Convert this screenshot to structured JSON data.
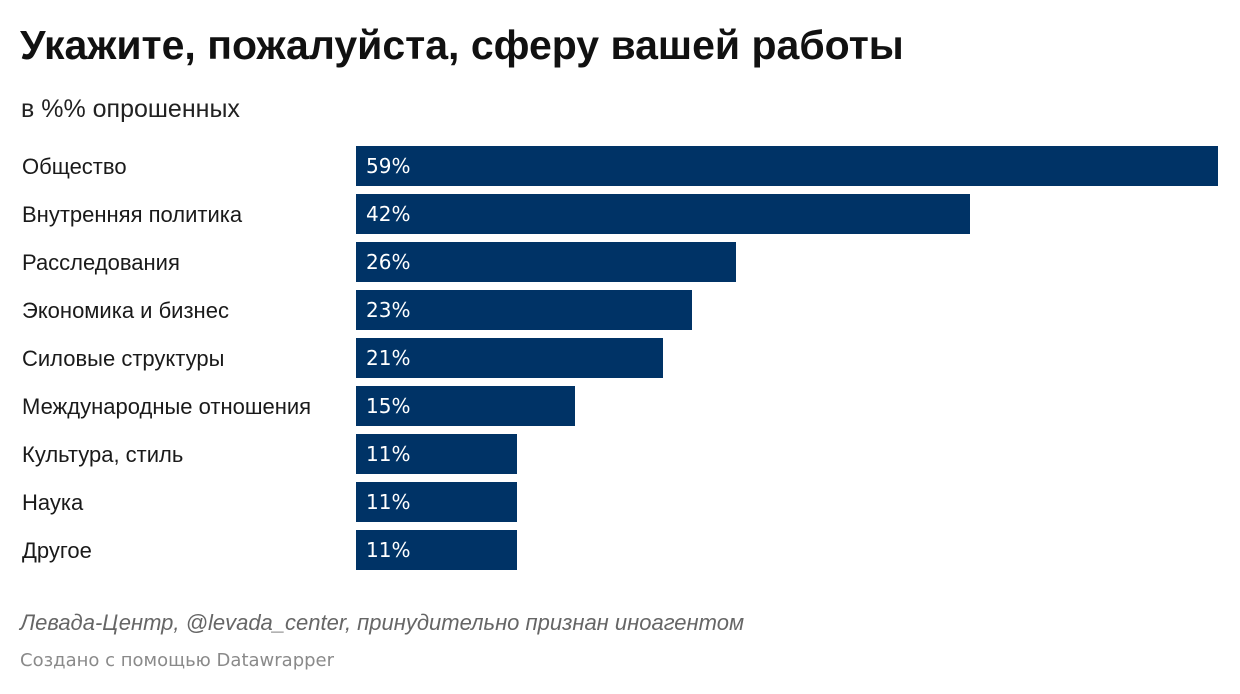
{
  "header": {
    "title": "Укажите, пожалуйста, сферу вашей работы",
    "subtitle": "в %% опрошенных"
  },
  "footer": {
    "source": "Левада-Центр, @levada_center, принудительно признан иноагентом",
    "credit": "Создано с помощью Datawrapper"
  },
  "colors": {
    "bar": "#003366",
    "bar_label": "#ffffff"
  },
  "chart_data": {
    "type": "bar",
    "orientation": "horizontal",
    "title": "Укажите, пожалуйста, сферу вашей работы",
    "subtitle": "в %% опрошенных",
    "categories": [
      "Общество",
      "Внутренняя политика",
      "Расследования",
      "Экономика и бизнес",
      "Силовые структуры",
      "Международные отношения",
      "Культура, стиль",
      "Наука",
      "Другое"
    ],
    "values": [
      59,
      42,
      26,
      23,
      21,
      15,
      11,
      11,
      11
    ],
    "value_labels": [
      "59%",
      "42%",
      "26%",
      "23%",
      "21%",
      "15%",
      "11%",
      "11%",
      "11%"
    ],
    "unit": "%",
    "xlim": [
      0,
      59
    ],
    "grid": false,
    "legend": "none"
  }
}
